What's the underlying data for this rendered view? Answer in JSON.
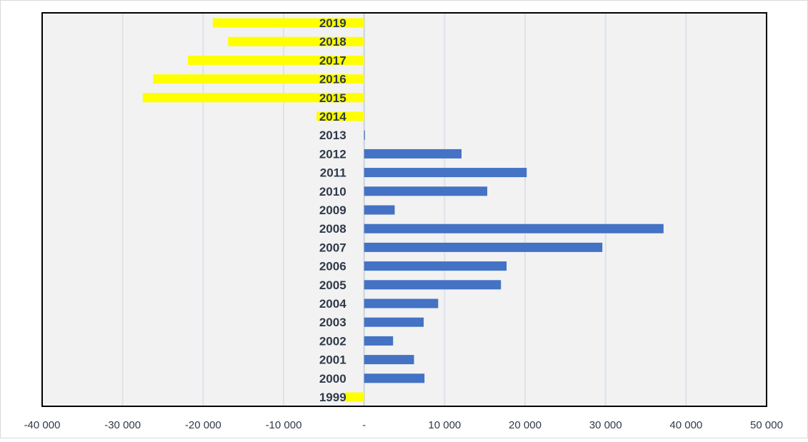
{
  "chart_data": {
    "type": "bar",
    "orientation": "horizontal",
    "title": "",
    "xlabel": "",
    "ylabel": "",
    "xlim": [
      -40000,
      50000
    ],
    "x_ticks": [
      -40000,
      -30000,
      -20000,
      -10000,
      0,
      10000,
      20000,
      30000,
      40000,
      50000
    ],
    "x_tick_labels": [
      "-40 000",
      "-30 000",
      "-20 000",
      "-10 000",
      "-",
      "10 000",
      "20 000",
      "30 000",
      "40 000",
      "50 000"
    ],
    "grid": true,
    "legend": "none",
    "categories": [
      "1999",
      "2000",
      "2001",
      "2002",
      "2003",
      "2004",
      "2005",
      "2006",
      "2007",
      "2008",
      "2009",
      "2010",
      "2011",
      "2012",
      "2013",
      "2014",
      "2015",
      "2016",
      "2017",
      "2018",
      "2019"
    ],
    "values": [
      -2400,
      7500,
      6200,
      3600,
      7400,
      9200,
      17000,
      17700,
      29600,
      37200,
      3800,
      15300,
      20200,
      12100,
      100,
      -5900,
      -27500,
      -26200,
      -21900,
      -16900,
      -18800
    ],
    "colors": {
      "positive": "#4472c4",
      "negative": "#ffff00",
      "plot_background": "#f2f2f2",
      "gridline": "#dde3ea",
      "frame": "#000000",
      "label_text": "#2f3a4a"
    }
  }
}
